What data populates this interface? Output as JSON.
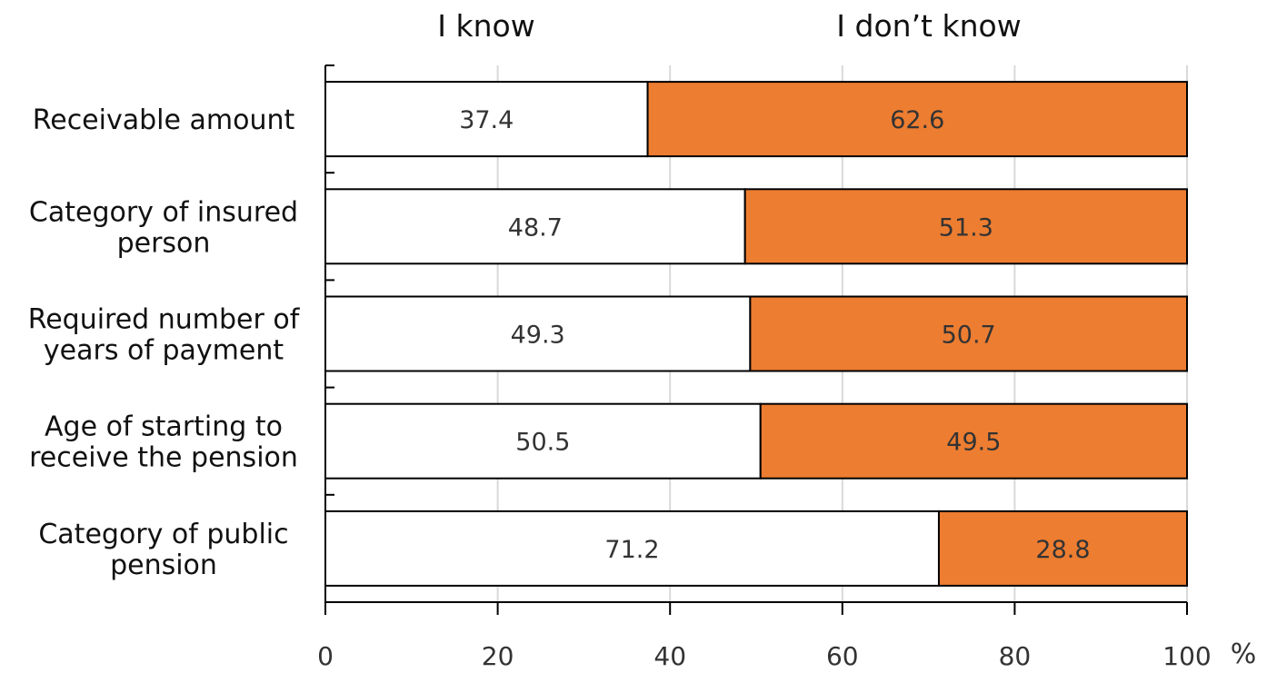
{
  "chart_data": {
    "type": "bar",
    "orientation": "horizontal",
    "stacked": true,
    "categories": [
      [
        "Receivable amount"
      ],
      [
        "Category of insured",
        "person"
      ],
      [
        "Required number of",
        "years of payment"
      ],
      [
        "Age of starting to",
        "receive the pension"
      ],
      [
        "Category of public",
        "pension"
      ]
    ],
    "series": [
      {
        "name": "I know",
        "color": "#ffffff",
        "values": [
          37.4,
          48.7,
          49.3,
          50.5,
          71.2
        ]
      },
      {
        "name": "I don’t know",
        "color": "#ed7d31",
        "values": [
          62.6,
          51.3,
          50.7,
          49.5,
          28.8
        ]
      }
    ],
    "xlim": [
      0,
      100
    ],
    "xticks": [
      0,
      20,
      40,
      60,
      80,
      100
    ],
    "xunit": "%",
    "grid": true,
    "legend_position": "top"
  }
}
